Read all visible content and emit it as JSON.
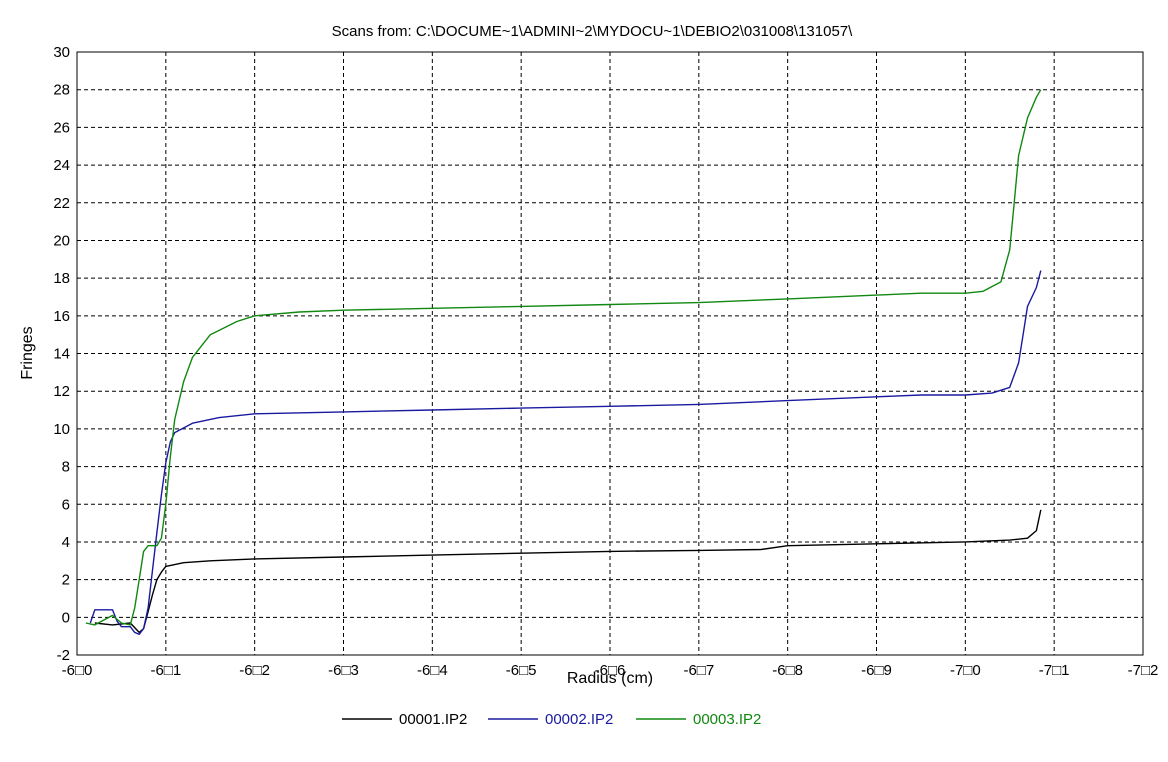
{
  "chart_data": {
    "type": "line",
    "title": "Scans from: C:\\DOCUME~1\\ADMINI~2\\MYDOCU~1\\DEBIO2\\031008\\131057\\",
    "xlabel": "Radius (cm)",
    "ylabel": "Fringes",
    "xlim": [
      -6.0,
      -7.2
    ],
    "ylim": [
      -2,
      30
    ],
    "x_tick_labels": [
      "-6□0",
      "-6□1",
      "-6□2",
      "-6□3",
      "-6□4",
      "-6□5",
      "-6□6",
      "-6□7",
      "-6□8",
      "-6□9",
      "-7□0",
      "-7□1",
      "-7□2"
    ],
    "y_ticks": [
      -2,
      0,
      2,
      4,
      6,
      8,
      10,
      12,
      14,
      16,
      18,
      20,
      22,
      24,
      26,
      28,
      30
    ],
    "grid": true,
    "legend_position": "bottom",
    "series": [
      {
        "name": "00001.IP2",
        "color": "#000000",
        "points": [
          [
            -6.02,
            -0.3
          ],
          [
            -6.04,
            -0.4
          ],
          [
            -6.06,
            -0.3
          ],
          [
            -6.07,
            -0.8
          ],
          [
            -6.075,
            -0.6
          ],
          [
            -6.08,
            0.3
          ],
          [
            -6.085,
            1.2
          ],
          [
            -6.09,
            2.0
          ],
          [
            -6.095,
            2.4
          ],
          [
            -6.1,
            2.7
          ],
          [
            -6.12,
            2.9
          ],
          [
            -6.15,
            3.0
          ],
          [
            -6.2,
            3.1
          ],
          [
            -6.3,
            3.2
          ],
          [
            -6.4,
            3.3
          ],
          [
            -6.5,
            3.4
          ],
          [
            -6.6,
            3.5
          ],
          [
            -6.7,
            3.55
          ],
          [
            -6.77,
            3.6
          ],
          [
            -6.8,
            3.8
          ],
          [
            -6.9,
            3.9
          ],
          [
            -7.0,
            4.0
          ],
          [
            -7.05,
            4.1
          ],
          [
            -7.07,
            4.2
          ],
          [
            -7.08,
            4.6
          ],
          [
            -7.085,
            5.7
          ]
        ]
      },
      {
        "name": "00002.IP2",
        "color": "#1a1aa0",
        "points": [
          [
            -6.015,
            -0.3
          ],
          [
            -6.02,
            0.4
          ],
          [
            -6.04,
            0.4
          ],
          [
            -6.045,
            -0.2
          ],
          [
            -6.05,
            -0.5
          ],
          [
            -6.06,
            -0.5
          ],
          [
            -6.065,
            -0.8
          ],
          [
            -6.07,
            -0.9
          ],
          [
            -6.075,
            -0.6
          ],
          [
            -6.08,
            0.5
          ],
          [
            -6.085,
            2.5
          ],
          [
            -6.09,
            4.5
          ],
          [
            -6.095,
            6.5
          ],
          [
            -6.1,
            8.2
          ],
          [
            -6.105,
            9.3
          ],
          [
            -6.11,
            9.8
          ],
          [
            -6.13,
            10.3
          ],
          [
            -6.16,
            10.6
          ],
          [
            -6.2,
            10.8
          ],
          [
            -6.3,
            10.9
          ],
          [
            -6.4,
            11.0
          ],
          [
            -6.5,
            11.1
          ],
          [
            -6.6,
            11.2
          ],
          [
            -6.7,
            11.3
          ],
          [
            -6.8,
            11.5
          ],
          [
            -6.9,
            11.7
          ],
          [
            -6.95,
            11.8
          ],
          [
            -7.0,
            11.8
          ],
          [
            -7.03,
            11.9
          ],
          [
            -7.05,
            12.2
          ],
          [
            -7.06,
            13.5
          ],
          [
            -7.065,
            15.0
          ],
          [
            -7.07,
            16.5
          ],
          [
            -7.08,
            17.5
          ],
          [
            -7.085,
            18.4
          ]
        ]
      },
      {
        "name": "00003.IP2",
        "color": "#118811",
        "points": [
          [
            -6.01,
            -0.3
          ],
          [
            -6.02,
            -0.4
          ],
          [
            -6.04,
            0.1
          ],
          [
            -6.05,
            -0.3
          ],
          [
            -6.06,
            -0.4
          ],
          [
            -6.065,
            0.5
          ],
          [
            -6.07,
            2.0
          ],
          [
            -6.075,
            3.5
          ],
          [
            -6.08,
            3.8
          ],
          [
            -6.09,
            3.8
          ],
          [
            -6.095,
            4.2
          ],
          [
            -6.1,
            6.0
          ],
          [
            -6.105,
            8.5
          ],
          [
            -6.11,
            10.5
          ],
          [
            -6.12,
            12.5
          ],
          [
            -6.13,
            13.8
          ],
          [
            -6.15,
            15.0
          ],
          [
            -6.18,
            15.7
          ],
          [
            -6.2,
            16.0
          ],
          [
            -6.25,
            16.2
          ],
          [
            -6.3,
            16.3
          ],
          [
            -6.4,
            16.4
          ],
          [
            -6.5,
            16.5
          ],
          [
            -6.6,
            16.6
          ],
          [
            -6.7,
            16.7
          ],
          [
            -6.8,
            16.9
          ],
          [
            -6.9,
            17.1
          ],
          [
            -6.95,
            17.2
          ],
          [
            -7.0,
            17.2
          ],
          [
            -7.02,
            17.3
          ],
          [
            -7.04,
            17.8
          ],
          [
            -7.05,
            19.5
          ],
          [
            -7.055,
            22.0
          ],
          [
            -7.06,
            24.5
          ],
          [
            -7.07,
            26.5
          ],
          [
            -7.08,
            27.6
          ],
          [
            -7.085,
            28.0
          ]
        ]
      }
    ]
  }
}
